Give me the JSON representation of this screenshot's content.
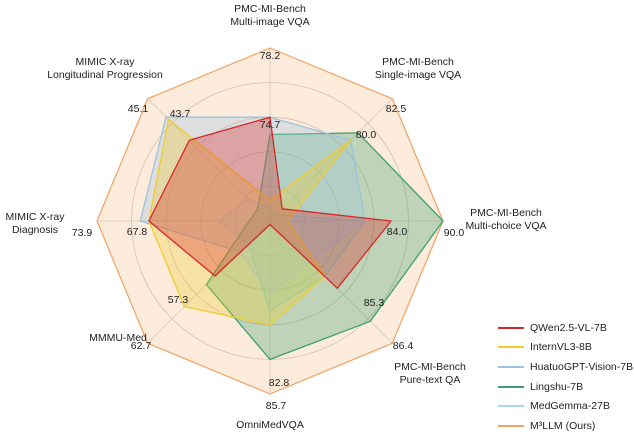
{
  "chart_data": {
    "type": "radar",
    "axes": [
      {
        "label": [
          "PMC-MI-Bench",
          "Multi-image VQA"
        ],
        "max_label": "78.2",
        "inner_label": "74.7"
      },
      {
        "label": [
          "PMC-MI-Bench",
          "Single-image VQA"
        ],
        "max_label": "82.5",
        "inner_label": "80.0"
      },
      {
        "label": [
          "PMC-MI-Bench",
          "Multi-choice VQA"
        ],
        "max_label": "90.0",
        "inner_label": "84.0"
      },
      {
        "label": [
          "PMC-MI-Bench",
          "Pure-text QA"
        ],
        "max_label": "86.4",
        "inner_label": "85.3"
      },
      {
        "label": [
          "OmniMedVQA"
        ],
        "max_label": "85.7",
        "inner_label": "82.8"
      },
      {
        "label": [
          "MMMU-Med"
        ],
        "max_label": "62.7",
        "inner_label": "57.3"
      },
      {
        "label": [
          "MIMIC X-ray",
          "Diagnosis"
        ],
        "max_label": "73.9",
        "inner_label": "67.8"
      },
      {
        "label": [
          "MIMIC X-ray",
          "Longitudinal Progression"
        ],
        "max_label": "45.1",
        "inner_label": "43.7"
      }
    ],
    "grid_levels": [
      0.2,
      0.4,
      0.6,
      0.8,
      1.0
    ],
    "series": [
      {
        "name": "M³LLM (Ours)",
        "color": "#f4a261",
        "values": [
          1.0,
          1.0,
          1.0,
          1.0,
          1.0,
          1.0,
          1.0,
          1.0
        ]
      },
      {
        "name": "MedGemma-27B",
        "color": "#a8dde8",
        "values": [
          0.08,
          0.05,
          0.55,
          0.45,
          0.52,
          0.18,
          0.3,
          0.18
        ]
      },
      {
        "name": "Lingshu-7B",
        "color": "#3aa26a",
        "values": [
          0.5,
          0.72,
          1.0,
          0.82,
          0.8,
          0.52,
          0.12,
          0.1
        ]
      },
      {
        "name": "HuatuoGPT-Vision-7B",
        "color": "#9cc3e0",
        "values": [
          0.6,
          0.66,
          0.55,
          0.33,
          0.42,
          0.25,
          0.75,
          0.85
        ]
      },
      {
        "name": "InternVL3-8B",
        "color": "#f0cc30",
        "values": [
          0.12,
          0.66,
          0.1,
          0.45,
          0.6,
          0.7,
          0.7,
          0.83
        ]
      },
      {
        "name": "QWen2.5-VL-7B",
        "color": "#d62728",
        "values": [
          0.6,
          0.1,
          0.7,
          0.55,
          0.02,
          0.45,
          0.7,
          0.66
        ]
      }
    ],
    "legend": [
      "QWen2.5-VL-7B",
      "InternVL3-8B",
      "HuatuoGPT-Vision-7B",
      "Lingshu-7B",
      "MedGemma-27B",
      "M³LLM (Ours)"
    ],
    "legend_position": "bottom-right"
  }
}
